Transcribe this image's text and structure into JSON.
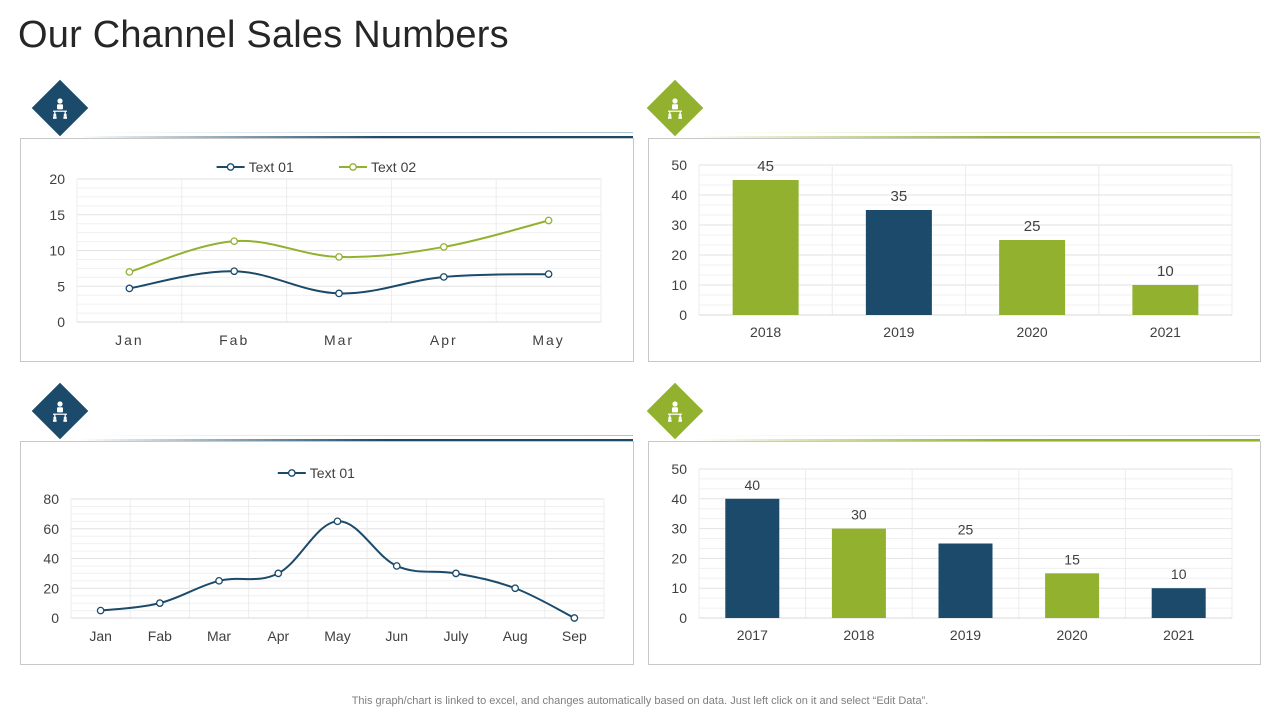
{
  "page": {
    "title": "Our Channel Sales Numbers",
    "footer": "This graph/chart is linked to excel,  and changes automatically based on data. Just left click on it and select “Edit Data”."
  },
  "icons": [
    "org-chart-icon",
    "org-chart-icon",
    "org-chart-icon",
    "org-chart-icon"
  ],
  "colors": {
    "navy": "#1b4a6b",
    "green": "#92b22f",
    "grid": "#e6e6e6",
    "axis_text": "#404040"
  },
  "chart_data": [
    {
      "type": "line",
      "categories": [
        "Jan",
        "Fab",
        "Mar",
        "Apr",
        "May"
      ],
      "series": [
        {
          "name": "Text 01",
          "values": [
            4.7,
            7.1,
            4.0,
            6.3,
            6.7
          ],
          "color": "#1b4a6b"
        },
        {
          "name": "Text 02",
          "values": [
            7.0,
            11.3,
            9.1,
            10.5,
            14.2
          ],
          "color": "#92b22f"
        }
      ],
      "yticks": [
        "0",
        "5",
        "10",
        "15",
        "20"
      ],
      "ylim": [
        0,
        20
      ],
      "legend": "top-center",
      "grid": true
    },
    {
      "type": "bar",
      "categories": [
        "2018",
        "2019",
        "2020",
        "2021"
      ],
      "values": [
        45,
        35,
        25,
        10
      ],
      "labels": [
        "45",
        "35",
        "25",
        "10"
      ],
      "colors": [
        "#92b22f",
        "#1b4a6b",
        "#92b22f",
        "#92b22f"
      ],
      "yticks": [
        "0",
        "10",
        "20",
        "30",
        "40",
        "50"
      ],
      "ylim": [
        0,
        50
      ],
      "grid": true
    },
    {
      "type": "line",
      "categories": [
        "Jan",
        "Fab",
        "Mar",
        "Apr",
        "May",
        "Jun",
        "July",
        "Aug",
        "Sep"
      ],
      "series": [
        {
          "name": "Text 01",
          "values": [
            5,
            10,
            25,
            30,
            65,
            35,
            30,
            20,
            0
          ],
          "color": "#1b4a6b"
        }
      ],
      "yticks": [
        "0",
        "20",
        "40",
        "60",
        "80"
      ],
      "ylim": [
        0,
        80
      ],
      "legend": "top-center",
      "grid": true
    },
    {
      "type": "bar",
      "categories": [
        "2017",
        "2018",
        "2019",
        "2020",
        "2021"
      ],
      "values": [
        40,
        30,
        25,
        15,
        10
      ],
      "labels": [
        "40",
        "30",
        "25",
        "15",
        "10"
      ],
      "colors": [
        "#1b4a6b",
        "#92b22f",
        "#1b4a6b",
        "#92b22f",
        "#1b4a6b"
      ],
      "yticks": [
        "0",
        "10",
        "20",
        "30",
        "40",
        "50"
      ],
      "ylim": [
        0,
        50
      ],
      "grid": true
    }
  ]
}
